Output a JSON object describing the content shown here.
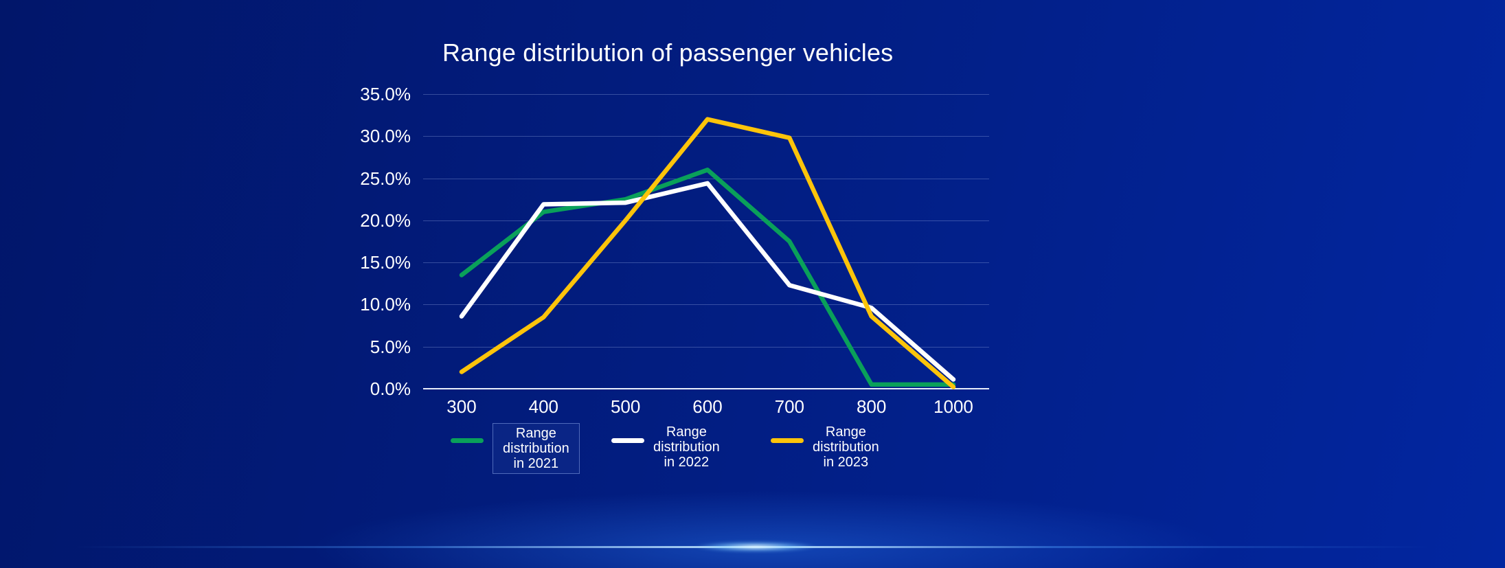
{
  "chart_data": {
    "type": "line",
    "title": "Range distribution of passenger vehicles",
    "categories": [
      "300",
      "400",
      "500",
      "600",
      "700",
      "800",
      "1000"
    ],
    "xlabel": "",
    "ylabel": "",
    "ylim": [
      0,
      35
    ],
    "y_ticks": [
      "0.0%",
      "5.0%",
      "10.0%",
      "15.0%",
      "20.0%",
      "25.0%",
      "30.0%",
      "35.0%"
    ],
    "grid": true,
    "legend_position": "bottom",
    "series": [
      {
        "name": "Range distribution in 2021",
        "color": "#0aa05a",
        "values": [
          13.5,
          21.0,
          22.5,
          26.0,
          17.5,
          0.5,
          0.5
        ]
      },
      {
        "name": "Range distribution in 2022",
        "color": "#ffffff",
        "values": [
          8.6,
          21.9,
          22.1,
          24.4,
          12.3,
          9.6,
          1.1
        ]
      },
      {
        "name": "Range distribution in 2023",
        "color": "#fdc40a",
        "values": [
          2.0,
          8.5,
          20.0,
          32.0,
          29.8,
          8.6,
          0.2
        ]
      }
    ]
  },
  "legend": {
    "items": [
      {
        "lines": [
          "Range",
          "distribution",
          "in 2021"
        ],
        "color": "#0aa05a",
        "boxed": true
      },
      {
        "lines": [
          "Range",
          "distribution",
          "in 2022"
        ],
        "color": "#ffffff",
        "boxed": false
      },
      {
        "lines": [
          "Range",
          "distribution",
          "in 2023"
        ],
        "color": "#fdc40a",
        "boxed": false
      }
    ]
  },
  "colors": {
    "background_start": "#01166a",
    "background_mid": "#021d80",
    "background_end": "#0226a0",
    "gridline": "#33479c",
    "axis_line": "#e9eefb",
    "text": "#ffffff",
    "glow_core": "#c8ebff",
    "series_2021": "#0aa05a",
    "series_2022": "#ffffff",
    "series_2023": "#fdc40a"
  }
}
